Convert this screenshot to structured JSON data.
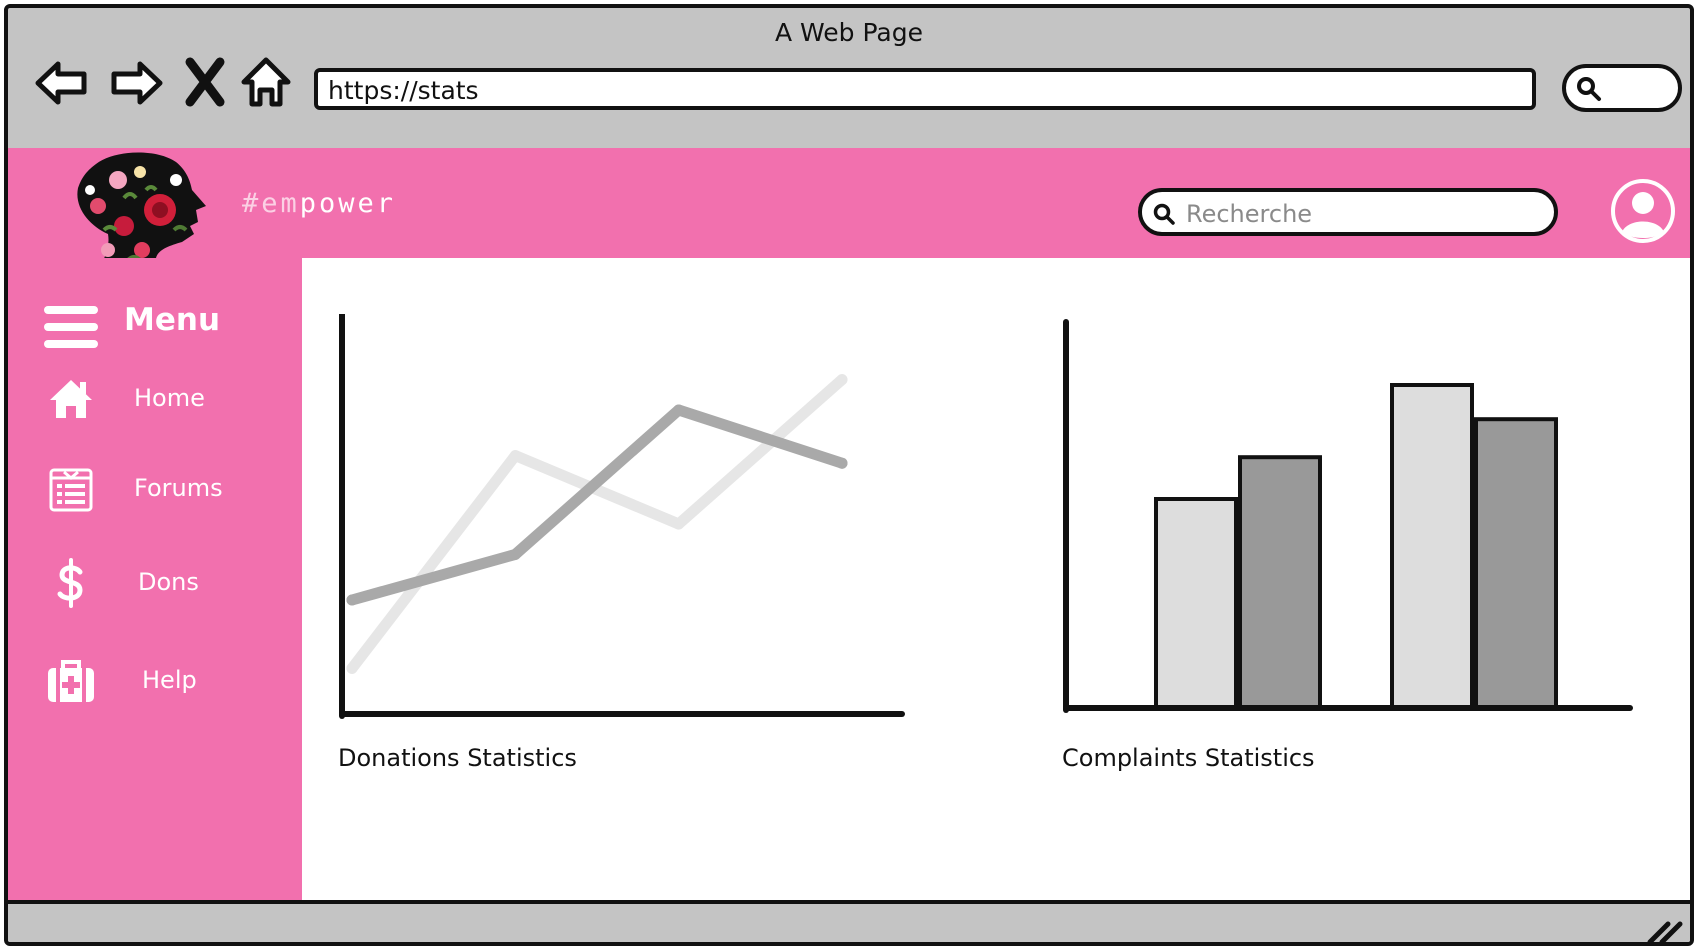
{
  "browser": {
    "window_title": "A Web Page",
    "url": "https://stats"
  },
  "header": {
    "brand_prefix": "#em",
    "brand_suffix": "power",
    "search_placeholder": "Recherche"
  },
  "sidebar": {
    "menu_title": "Menu",
    "items": [
      {
        "label": "Home",
        "icon": "home-icon"
      },
      {
        "label": "Forums",
        "icon": "forum-icon"
      },
      {
        "label": "Dons",
        "icon": "dollar-icon"
      },
      {
        "label": "Help",
        "icon": "first-aid-icon"
      }
    ]
  },
  "charts": {
    "donations_caption": "Donations Statistics",
    "complaints_caption": "Complaints Statistics"
  },
  "chart_data": [
    {
      "type": "line",
      "title": "",
      "x": [
        0,
        1,
        2,
        3
      ],
      "ylim": [
        0,
        100
      ],
      "series": [
        {
          "values": [
            12,
            68,
            50,
            88
          ],
          "color": "#e6e6e6"
        },
        {
          "values": [
            30,
            42,
            80,
            66
          ],
          "color": "#a9a9a9"
        }
      ]
    },
    {
      "type": "bar",
      "title": "",
      "categories": [
        "",
        ""
      ],
      "ylim": [
        0,
        100
      ],
      "series": [
        {
          "values": [
            55,
            85
          ],
          "color": "#dddddd"
        },
        {
          "values": [
            66,
            76
          ],
          "color": "#999999"
        }
      ]
    }
  ],
  "colors": {
    "accent_pink": "#f270ae",
    "chrome_gray": "#c4c4c4"
  }
}
